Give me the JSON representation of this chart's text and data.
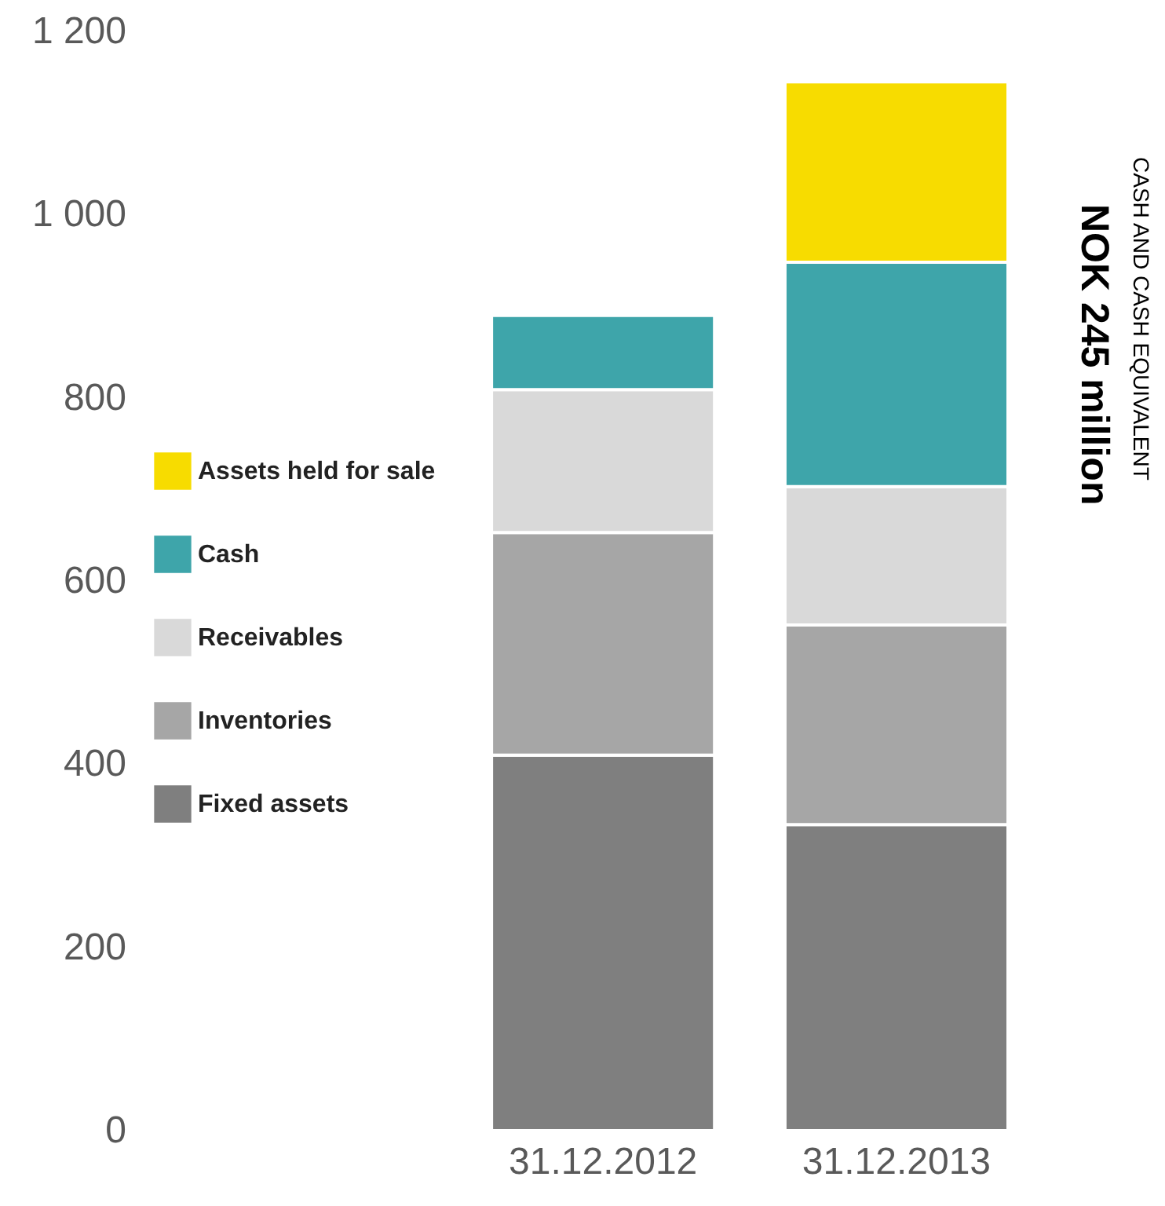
{
  "chart_data": {
    "type": "bar",
    "stacked": true,
    "categories": [
      "31.12.2012",
      "31.12.2013"
    ],
    "series": [
      {
        "name": "Fixed assets",
        "color": "#7f7f7f",
        "values": [
          410,
          334
        ]
      },
      {
        "name": "Inventories",
        "color": "#a6a6a6",
        "values": [
          243,
          218
        ]
      },
      {
        "name": "Receivables",
        "color": "#d9d9d9",
        "values": [
          156,
          151
        ]
      },
      {
        "name": "Cash",
        "color": "#3ea5aa",
        "values": [
          81,
          245
        ]
      },
      {
        "name": "Assets held for sale",
        "color": "#f7dc00",
        "values": [
          null,
          197
        ]
      }
    ],
    "ylim": [
      0,
      1200
    ],
    "yticks": [
      0,
      200,
      400,
      600,
      800,
      {
        "value": 1000,
        "label": "1 000"
      },
      {
        "value": 1200,
        "label": "1 200"
      }
    ],
    "grid": false,
    "legend": "left",
    "annotations": [
      "CASH AND CASH EQUIVALENT",
      "NOK 245 million"
    ]
  }
}
